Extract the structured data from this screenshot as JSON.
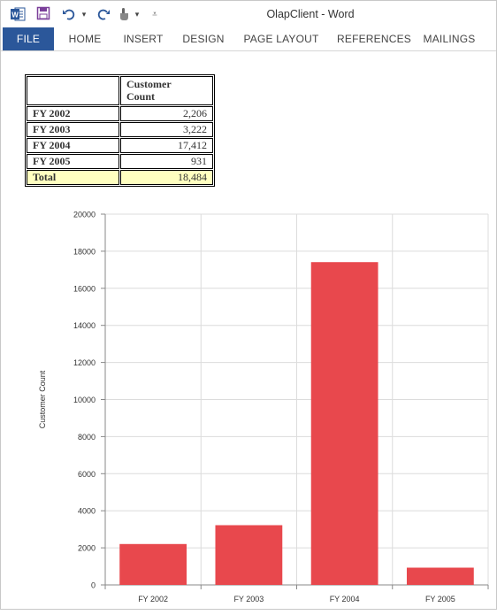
{
  "window": {
    "title": "OlapClient - Word"
  },
  "ribbon": {
    "tabs": [
      {
        "label": "FILE"
      },
      {
        "label": "HOME"
      },
      {
        "label": "INSERT"
      },
      {
        "label": "DESIGN"
      },
      {
        "label": "PAGE LAYOUT"
      },
      {
        "label": "REFERENCES"
      },
      {
        "label": "MAILINGS"
      }
    ]
  },
  "quick_access": {
    "icons": [
      "word-logo-icon",
      "save-icon",
      "undo-icon",
      "redo-icon",
      "touch-mode-icon",
      "customize-toolbar-icon"
    ]
  },
  "table": {
    "header": {
      "col1": "",
      "col2_line1": "Customer",
      "col2_line2": "Count"
    },
    "rows": [
      {
        "label": "FY 2002",
        "value": "2,206"
      },
      {
        "label": "FY 2003",
        "value": "3,222"
      },
      {
        "label": "FY 2004",
        "value": "17,412"
      },
      {
        "label": "FY 2005",
        "value": "931"
      }
    ],
    "total": {
      "label": "Total",
      "value": "18,484"
    }
  },
  "colors": {
    "file_tab": "#2b579a",
    "bar": "#e8484d",
    "total_row": "#ffffc0",
    "word_icon": "#2b579a",
    "save_icon": "#7b3f9a"
  },
  "chart_data": {
    "type": "bar",
    "categories": [
      "FY 2002",
      "FY 2003",
      "FY 2004",
      "FY 2005"
    ],
    "values": [
      2206,
      3222,
      17412,
      931
    ],
    "title": "",
    "xlabel": "",
    "ylabel": "Customer Count",
    "ylim": [
      0,
      20000
    ],
    "yticks": [
      0,
      2000,
      4000,
      6000,
      8000,
      10000,
      12000,
      14000,
      16000,
      18000,
      20000
    ],
    "grid": true,
    "legend": "none"
  }
}
